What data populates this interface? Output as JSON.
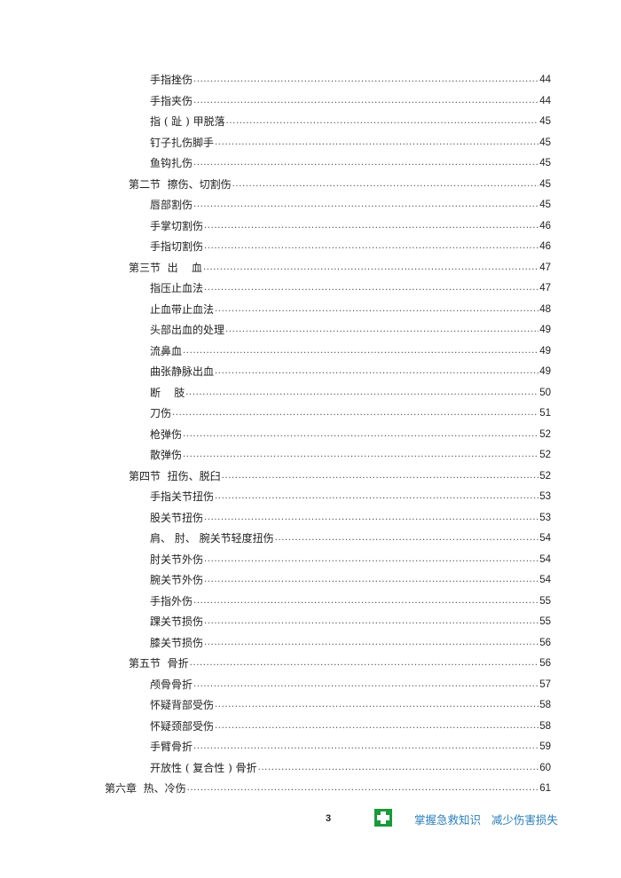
{
  "toc": [
    {
      "level": 3,
      "title": "手指挫伤",
      "page": "44"
    },
    {
      "level": 3,
      "title": "手指夹伤",
      "page": "44"
    },
    {
      "level": 3,
      "title": "指 ( 趾 ) 甲脱落",
      "page": "45"
    },
    {
      "level": 3,
      "title": "钉子扎伤脚手",
      "page": "45"
    },
    {
      "level": 3,
      "title": "鱼钩扎伤",
      "page": "45"
    },
    {
      "level": 2,
      "title": "第二节  擦伤、切割伤",
      "page": "45"
    },
    {
      "level": 3,
      "title": "唇部割伤",
      "page": "45"
    },
    {
      "level": 3,
      "title": "手掌切割伤",
      "page": "46"
    },
    {
      "level": 3,
      "title": "手指切割伤",
      "page": "46"
    },
    {
      "level": 2,
      "title": "第三节  出    血",
      "page": "47"
    },
    {
      "level": 3,
      "title": "指压止血法",
      "page": "47"
    },
    {
      "level": 3,
      "title": "止血带止血法",
      "page": "48"
    },
    {
      "level": 3,
      "title": "头部出血的处理",
      "page": "49"
    },
    {
      "level": 3,
      "title": "流鼻血",
      "page": "49"
    },
    {
      "level": 3,
      "title": "曲张静脉出血",
      "page": "49"
    },
    {
      "level": 3,
      "title": "断    肢",
      "page": "50"
    },
    {
      "level": 3,
      "title": "刀伤",
      "page": "51"
    },
    {
      "level": 3,
      "title": "枪弹伤",
      "page": "52"
    },
    {
      "level": 3,
      "title": "散弹伤",
      "page": "52"
    },
    {
      "level": 2,
      "title": "第四节  扭伤、脱臼",
      "page": "52"
    },
    {
      "level": 3,
      "title": "手指关节扭伤",
      "page": "53"
    },
    {
      "level": 3,
      "title": "股关节扭伤",
      "page": "53"
    },
    {
      "level": 3,
      "title": "肩、 肘、 腕关节轻度扭伤",
      "page": "54"
    },
    {
      "level": 3,
      "title": "肘关节外伤",
      "page": "54"
    },
    {
      "level": 3,
      "title": "腕关节外伤",
      "page": "54"
    },
    {
      "level": 3,
      "title": "手指外伤",
      "page": "55"
    },
    {
      "level": 3,
      "title": "踝关节损伤",
      "page": "55"
    },
    {
      "level": 3,
      "title": "膝关节损伤",
      "page": "56"
    },
    {
      "level": 2,
      "title": "第五节  骨折",
      "page": "56"
    },
    {
      "level": 3,
      "title": "颅骨骨折",
      "page": "57"
    },
    {
      "level": 3,
      "title": "怀疑背部受伤",
      "page": "58"
    },
    {
      "level": 3,
      "title": "怀疑颈部受伤",
      "page": "58"
    },
    {
      "level": 3,
      "title": "手臂骨折",
      "page": "59"
    },
    {
      "level": 3,
      "title": "开放性 ( 复合性 ) 骨折",
      "page": "60"
    },
    {
      "level": 1,
      "title": "第六章  热、冷伤",
      "page": "61"
    }
  ],
  "footer": {
    "page_number": "3",
    "icon": "first-aid-cross-icon",
    "icon_color": "#1a9a3a",
    "slogan": "掌握急救知识   减少伤害损失",
    "slogan_color": "#2b7fb8"
  }
}
